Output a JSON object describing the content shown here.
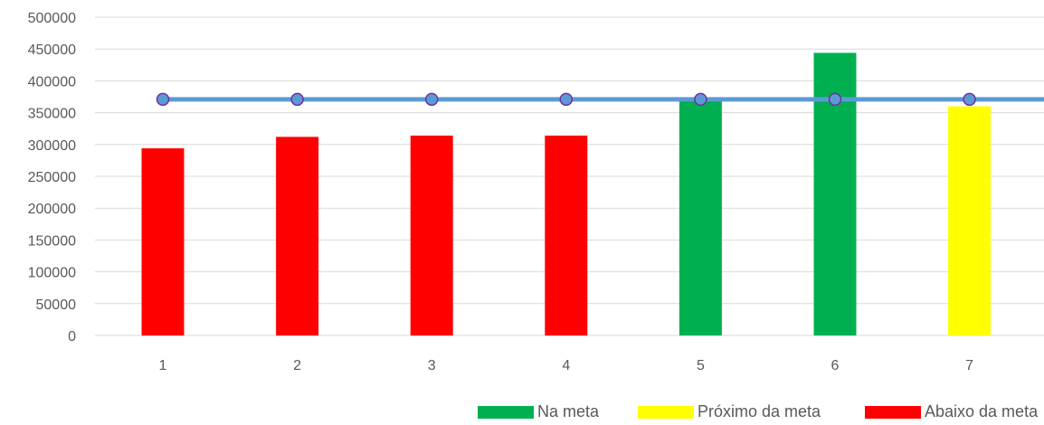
{
  "chart_data": {
    "type": "bar",
    "categories": [
      "1",
      "2",
      "3",
      "4",
      "5",
      "6",
      "7"
    ],
    "values": [
      294000,
      312000,
      314000,
      314000,
      370000,
      444000,
      360000
    ],
    "bar_status": [
      "abaixo",
      "abaixo",
      "abaixo",
      "abaixo",
      "na_meta",
      "na_meta",
      "proximo"
    ],
    "target": {
      "value": 371000,
      "line_color": "#5B9BD5",
      "marker_color": "#4472C4"
    },
    "ylim": [
      0,
      500000
    ],
    "yticks": [
      "0",
      "50000",
      "100000",
      "150000",
      "200000",
      "250000",
      "300000",
      "350000",
      "400000",
      "450000",
      "500000"
    ],
    "grid": true,
    "legend_position": "bottom-right",
    "legend": [
      {
        "key": "na_meta",
        "label": "Na meta",
        "color": "#00B050"
      },
      {
        "key": "proximo",
        "label": "Próximo da meta",
        "color": "#FFFF00"
      },
      {
        "key": "abaixo",
        "label": "Abaixo da meta",
        "color": "#FF0000"
      }
    ]
  }
}
